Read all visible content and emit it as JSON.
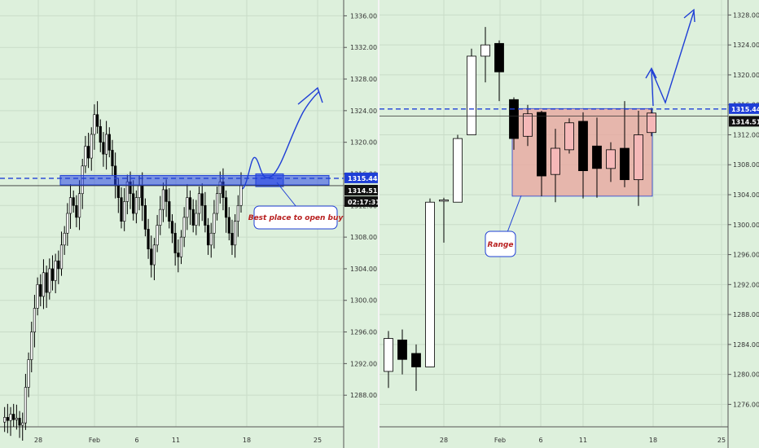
{
  "colors": {
    "background": "#ddf0dc",
    "grid": "#c9dcc8",
    "candle_up": "#ffffff",
    "candle_down": "#000000",
    "highlight_up": "#f5b8b8",
    "range_fill": "#e8a8a0",
    "blue": "#1f3fd6",
    "price_line": "#333333"
  },
  "chart_data": [
    {
      "type": "candlestick",
      "name": "left",
      "x_ticks": [
        "28",
        "Feb",
        "6",
        "11",
        "18",
        "25"
      ],
      "y_ticks": [
        1288,
        1292,
        1296,
        1300,
        1304,
        1308,
        1312,
        1316,
        1320,
        1324,
        1328,
        1332,
        1336
      ],
      "y_tick_labels": [
        "1288.00",
        "1292.00",
        "1296.00",
        "1300.00",
        "1304.00",
        "1308.00",
        "1312.00",
        "1316.00",
        "1320.00",
        "1324.00",
        "1328.00",
        "1332.00",
        "1336.00"
      ],
      "ylim": [
        1284,
        1338
      ],
      "dashed_level": 1315.44,
      "last_price": 1314.51,
      "badges": {
        "dashed_label": "1315.44",
        "price_label": "1314.51",
        "timer_label": "02:17:31"
      },
      "zone": [
        1314.6,
        1315.8
      ],
      "annotation": "Best place to open buy",
      "series_path": [
        1284.6,
        1285.2,
        1284.8,
        1285.6,
        1284.9,
        1285.1,
        1284.2,
        1284.5,
        1289.0,
        1292.5,
        1296.0,
        1299.0,
        1302.0,
        1300.5,
        1303.5,
        1301.0,
        1304.0,
        1302.5,
        1305.0,
        1304.0,
        1307.0,
        1308.5,
        1311.0,
        1313.0,
        1312.0,
        1310.5,
        1313.5,
        1317.0,
        1319.5,
        1318.0,
        1321.0,
        1323.5,
        1322.0,
        1320.0,
        1318.5,
        1321.0,
        1319.0,
        1317.0,
        1314.5,
        1313.0,
        1310.0,
        1312.5,
        1315.0,
        1313.5,
        1311.0,
        1313.0,
        1314.5,
        1312.0,
        1309.0,
        1306.5,
        1304.5,
        1307.0,
        1309.5,
        1311.5,
        1314.0,
        1312.5,
        1310.0,
        1308.5,
        1306.0,
        1305.5,
        1308.0,
        1310.5,
        1313.0,
        1311.5,
        1309.5,
        1311.0,
        1313.5,
        1312.0,
        1309.5,
        1307.0,
        1308.5,
        1311.0,
        1313.5,
        1315.0,
        1313.0,
        1310.5,
        1308.5,
        1307.0,
        1310.0,
        1312.0,
        1314.5
      ]
    },
    {
      "type": "candlestick",
      "name": "right",
      "x_ticks": [
        "28",
        "Feb",
        "6",
        "11",
        "18",
        "25"
      ],
      "y_ticks": [
        1276,
        1280,
        1284,
        1288,
        1292,
        1296,
        1300,
        1304,
        1308,
        1312,
        1316,
        1320,
        1324,
        1328
      ],
      "y_tick_labels": [
        "1276.00",
        "1280.00",
        "1284.00",
        "1288.00",
        "1292.00",
        "1296.00",
        "1300.00",
        "1304.00",
        "1308.00",
        "1312.00",
        "1316.00",
        "1320.00",
        "1324.00",
        "1328.00"
      ],
      "ylim": [
        1273,
        1330
      ],
      "dashed_level": 1315.44,
      "last_price": 1314.51,
      "badges": {
        "dashed_label": "1315.44",
        "price_label": "1314.51"
      },
      "range_box": [
        1303.8,
        1315.5
      ],
      "annotation": "Range",
      "candles": [
        {
          "o": 1280.4,
          "h": 1285.8,
          "l": 1278.2,
          "c": 1284.8
        },
        {
          "o": 1284.6,
          "h": 1286.0,
          "l": 1280.0,
          "c": 1282.0
        },
        {
          "o": 1282.8,
          "h": 1284.0,
          "l": 1277.8,
          "c": 1281.0
        },
        {
          "o": 1281.0,
          "h": 1303.5,
          "l": 1281.0,
          "c": 1303.0
        },
        {
          "o": 1303.2,
          "h": 1303.6,
          "l": 1297.6,
          "c": 1303.3
        },
        {
          "o": 1303.0,
          "h": 1312.0,
          "l": 1303.0,
          "c": 1311.5
        },
        {
          "o": 1312.0,
          "h": 1323.5,
          "l": 1312.0,
          "c": 1322.5
        },
        {
          "o": 1322.5,
          "h": 1326.4,
          "l": 1319.0,
          "c": 1324.0
        },
        {
          "o": 1324.2,
          "h": 1324.6,
          "l": 1316.5,
          "c": 1320.4
        },
        {
          "o": 1316.7,
          "h": 1317.0,
          "l": 1310.0,
          "c": 1311.5
        },
        {
          "o": 1311.8,
          "h": 1316.0,
          "l": 1310.5,
          "c": 1314.8
        },
        {
          "o": 1315.0,
          "h": 1315.2,
          "l": 1303.8,
          "c": 1306.5
        },
        {
          "o": 1306.7,
          "h": 1312.8,
          "l": 1303.0,
          "c": 1310.2
        },
        {
          "o": 1310.0,
          "h": 1314.2,
          "l": 1309.5,
          "c": 1313.6
        },
        {
          "o": 1313.8,
          "h": 1315.0,
          "l": 1303.5,
          "c": 1307.2
        },
        {
          "o": 1310.5,
          "h": 1314.3,
          "l": 1303.6,
          "c": 1307.5
        },
        {
          "o": 1307.5,
          "h": 1311.0,
          "l": 1305.7,
          "c": 1310.0
        },
        {
          "o": 1310.2,
          "h": 1316.5,
          "l": 1305.0,
          "c": 1306.0
        },
        {
          "o": 1306.0,
          "h": 1315.2,
          "l": 1302.5,
          "c": 1312.0
        },
        {
          "o": 1312.3,
          "h": 1315.6,
          "l": 1311.8,
          "c": 1314.9
        }
      ]
    }
  ]
}
